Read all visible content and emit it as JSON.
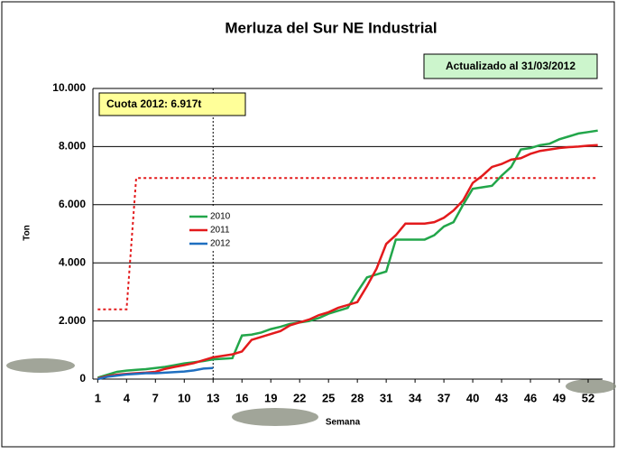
{
  "chart_data": {
    "type": "line",
    "title": "Merluza del Sur NE Industrial",
    "annotations": {
      "quota": "Cuota 2012: 6.917t",
      "updated": "Actualizado al 31/03/2012"
    },
    "reference_line": {
      "x": 13
    },
    "xlabel": "Semana",
    "ylabel": "Ton",
    "x": [
      1,
      2,
      3,
      4,
      5,
      6,
      7,
      8,
      9,
      10,
      11,
      12,
      13,
      14,
      15,
      16,
      17,
      18,
      19,
      20,
      21,
      22,
      23,
      24,
      25,
      26,
      27,
      28,
      29,
      30,
      31,
      32,
      33,
      34,
      35,
      36,
      37,
      38,
      39,
      40,
      41,
      42,
      43,
      44,
      45,
      46,
      47,
      48,
      49,
      50,
      51,
      52,
      53
    ],
    "xlim": [
      0.5,
      53.5
    ],
    "xticks": [
      1,
      4,
      7,
      10,
      13,
      16,
      19,
      22,
      25,
      28,
      31,
      34,
      37,
      40,
      43,
      46,
      49,
      52
    ],
    "ylim": [
      0,
      10000
    ],
    "yticks": [
      {
        "value": 0,
        "label": "0"
      },
      {
        "value": 2000,
        "label": "2.000"
      },
      {
        "value": 4000,
        "label": "4.000"
      },
      {
        "value": 6000,
        "label": "6.000"
      },
      {
        "value": 8000,
        "label": "8.000"
      },
      {
        "value": 10000,
        "label": "10.000"
      }
    ],
    "grid": true,
    "series": [
      {
        "name": "2010",
        "color": "#22a64a",
        "values": [
          50,
          150,
          250,
          290,
          320,
          340,
          380,
          420,
          480,
          540,
          580,
          620,
          680,
          700,
          720,
          1500,
          1530,
          1600,
          1720,
          1800,
          1900,
          1950,
          2000,
          2100,
          2250,
          2350,
          2450,
          3000,
          3500,
          3600,
          3700,
          4800,
          4800,
          4800,
          4800,
          4950,
          5250,
          5400,
          6000,
          6550,
          6600,
          6650,
          7000,
          7300,
          7900,
          7950,
          8050,
          8100,
          8250,
          8350,
          8450,
          8500,
          8550
        ]
      },
      {
        "name": "2011",
        "color": "#e31a1c",
        "values": [
          20,
          100,
          150,
          180,
          200,
          220,
          250,
          350,
          420,
          480,
          550,
          650,
          750,
          800,
          850,
          950,
          1350,
          1450,
          1550,
          1650,
          1850,
          1950,
          2050,
          2200,
          2300,
          2450,
          2550,
          2650,
          3200,
          3800,
          4650,
          4950,
          5350,
          5350,
          5350,
          5400,
          5550,
          5800,
          6150,
          6750,
          7000,
          7300,
          7400,
          7550,
          7600,
          7750,
          7850,
          7900,
          7950,
          7980,
          8000,
          8030,
          8050
        ]
      },
      {
        "name": "2012",
        "color": "#1f6fc0",
        "values": [
          0,
          80,
          120,
          160,
          180,
          200,
          200,
          220,
          240,
          260,
          300,
          360,
          380,
          null,
          null,
          null,
          null,
          null,
          null,
          null,
          null,
          null,
          null,
          null,
          null,
          null,
          null,
          null,
          null,
          null,
          null,
          null,
          null,
          null,
          null,
          null,
          null,
          null,
          null,
          null,
          null,
          null,
          null,
          null,
          null,
          null,
          null,
          null,
          null,
          null,
          null,
          null,
          null
        ]
      }
    ],
    "quota_line": {
      "color": "#e31a1c",
      "values": [
        2400,
        2400,
        2400,
        2400,
        6917,
        6917,
        6917,
        6917,
        6917,
        6917,
        6917,
        6917,
        6917,
        6917,
        6917,
        6917,
        6917,
        6917,
        6917,
        6917,
        6917,
        6917,
        6917,
        6917,
        6917,
        6917,
        6917,
        6917,
        6917,
        6917,
        6917,
        6917,
        6917,
        6917,
        6917,
        6917,
        6917,
        6917,
        6917,
        6917,
        6917,
        6917,
        6917,
        6917,
        6917,
        6917,
        6917,
        6917,
        6917,
        6917,
        6917,
        6917,
        6917
      ]
    }
  }
}
